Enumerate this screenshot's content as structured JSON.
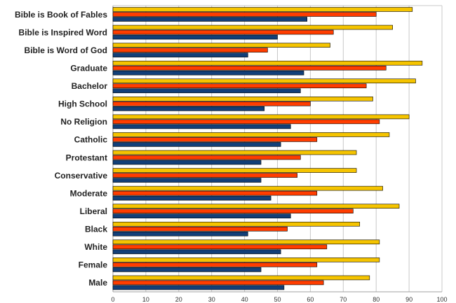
{
  "chart_data": {
    "type": "bar",
    "orientation": "horizontal",
    "title": "",
    "xlabel": "",
    "ylabel": "",
    "xlim": [
      0,
      100
    ],
    "x_ticks": [
      "0",
      "10",
      "20",
      "30",
      "40",
      "50",
      "60",
      "70",
      "80",
      "90",
      "100"
    ],
    "grid": true,
    "legend": "none",
    "categories": [
      "Bible is Book of Fables",
      "Bible is Inspired Word",
      "Bible is Word of God",
      "Graduate",
      "Bachelor",
      "High School",
      "No Religion",
      "Catholic",
      "Protestant",
      "Conservative",
      "Moderate",
      "Liberal",
      "Black",
      "White",
      "Female",
      "Male"
    ],
    "series": [
      {
        "color": "#f5c400",
        "values": [
          91,
          85,
          66,
          94,
          92,
          79,
          90,
          84,
          74,
          74,
          82,
          87,
          75,
          81,
          81,
          78
        ]
      },
      {
        "color": "#ff3d00",
        "values": [
          80,
          67,
          47,
          83,
          77,
          60,
          81,
          62,
          57,
          56,
          62,
          73,
          53,
          65,
          62,
          64
        ]
      },
      {
        "color": "#123f78",
        "values": [
          59,
          50,
          41,
          58,
          57,
          46,
          54,
          51,
          45,
          45,
          48,
          54,
          41,
          51,
          45,
          52
        ]
      }
    ]
  }
}
